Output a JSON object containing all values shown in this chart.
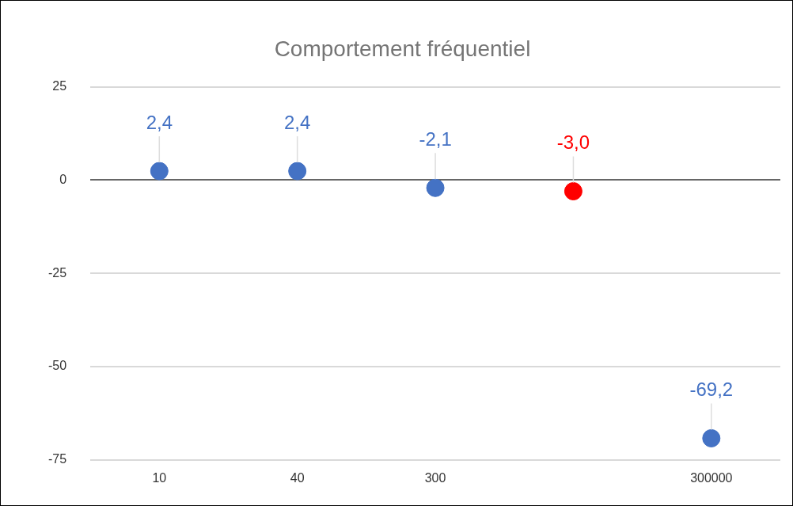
{
  "chart_data": {
    "type": "scatter",
    "title": "Comportement fréquentiel",
    "categories": [
      "10",
      "40",
      "300",
      null,
      "300000"
    ],
    "values": [
      2.4,
      2.4,
      -2.1,
      -3.0,
      -69.2
    ],
    "colors": [
      "#4472c4",
      "#4472c4",
      "#4472c4",
      "#ff0000",
      "#4472c4"
    ],
    "value_labels": [
      "2,4",
      "2,4",
      "-2,1",
      "-3,0",
      "-69,2"
    ],
    "ylim": [
      -75,
      25
    ],
    "yticks": [
      -75,
      -50,
      -25,
      0,
      25
    ],
    "grid": "y",
    "legend": false,
    "marker": "circle"
  }
}
